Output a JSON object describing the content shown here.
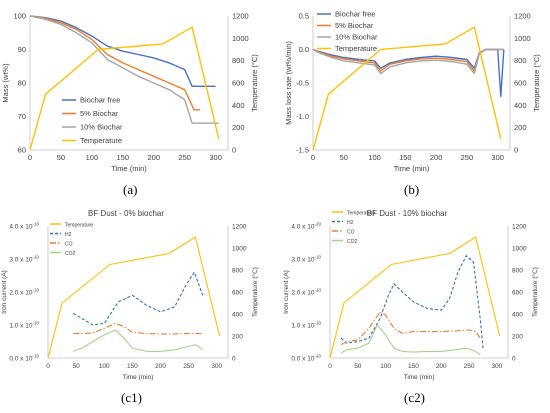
{
  "panel_labels": [
    "(a)",
    "(b)",
    "(c1)",
    "(c2)"
  ],
  "chart_data": [
    {
      "type": "line",
      "panel": "(a)",
      "xlabel": "Time (min)",
      "ylabel": "Mass (wt%)",
      "y2label": "Temperature (°C)",
      "xlim": [
        0,
        320
      ],
      "ylim": [
        60,
        100
      ],
      "y2lim": [
        0,
        1200
      ],
      "xticks": [
        0,
        50,
        100,
        150,
        200,
        250,
        300
      ],
      "yticks": [
        60,
        70,
        80,
        90,
        100
      ],
      "y2ticks": [
        0,
        200,
        400,
        600,
        800,
        1000,
        1200
      ],
      "legend_position": "lower-left",
      "series": [
        {
          "name": "Biochar free",
          "axis": "y",
          "color": "#4472c4",
          "x": [
            0,
            25,
            50,
            75,
            100,
            125,
            150,
            175,
            200,
            225,
            250,
            262,
            275,
            300
          ],
          "y": [
            100,
            99.5,
            98.5,
            96.5,
            94,
            91,
            89.5,
            88.5,
            87.5,
            86,
            84,
            79,
            79,
            79
          ]
        },
        {
          "name": "5% Biochar",
          "axis": "y",
          "color": "#ed7d31",
          "x": [
            0,
            25,
            50,
            75,
            100,
            125,
            150,
            175,
            200,
            225,
            250,
            265,
            275
          ],
          "y": [
            100,
            99.3,
            98,
            96,
            93,
            88.5,
            86,
            84,
            82,
            80,
            78,
            72,
            72
          ]
        },
        {
          "name": "10% Biochar",
          "axis": "y",
          "color": "#a5a5a5",
          "x": [
            0,
            25,
            50,
            75,
            100,
            125,
            150,
            175,
            200,
            225,
            250,
            262,
            275,
            305
          ],
          "y": [
            100,
            99,
            97.5,
            95,
            92,
            87,
            84.5,
            82,
            80,
            78,
            75,
            68,
            68,
            68
          ]
        },
        {
          "name": "Temperature",
          "axis": "y2",
          "color": "#ffc000",
          "x": [
            0,
            25,
            110,
            215,
            262,
            305
          ],
          "y": [
            0,
            500,
            900,
            950,
            1100,
            100
          ]
        }
      ]
    },
    {
      "type": "line",
      "panel": "(b)",
      "xlabel": "Time (min)",
      "ylabel": "Mass loss rate (wt%/min)",
      "y2label": "Temperature (°C)",
      "xlim": [
        0,
        320
      ],
      "ylim": [
        -1.5,
        0.5
      ],
      "y2lim": [
        0,
        1200
      ],
      "xticks": [
        0,
        50,
        100,
        150,
        200,
        250,
        300
      ],
      "yticks": [
        -1.5,
        -1,
        -0.5,
        0,
        0.5
      ],
      "ytick_labels": [
        "-1.5",
        "-1.0",
        "-0.5",
        "0.0",
        "0.5"
      ],
      "y2ticks": [
        0,
        200,
        400,
        600,
        800,
        1000,
        1200
      ],
      "legend_position": "top-left",
      "series": [
        {
          "name": "Biochar free",
          "axis": "y",
          "color": "#4472c4",
          "x": [
            0,
            10,
            30,
            50,
            75,
            100,
            110,
            125,
            150,
            175,
            200,
            225,
            250,
            262,
            270,
            280,
            300,
            305,
            310
          ],
          "y": [
            0,
            -0.03,
            -0.08,
            -0.12,
            -0.15,
            -0.17,
            -0.28,
            -0.2,
            -0.15,
            -0.12,
            -0.1,
            -0.12,
            -0.15,
            -0.28,
            -0.05,
            0,
            0,
            -0.7,
            0
          ]
        },
        {
          "name": "5% Biochar",
          "axis": "y",
          "color": "#ed7d31",
          "x": [
            0,
            10,
            30,
            50,
            75,
            100,
            110,
            125,
            150,
            175,
            200,
            225,
            250,
            262,
            270,
            280,
            300,
            310
          ],
          "y": [
            0,
            -0.04,
            -0.1,
            -0.14,
            -0.17,
            -0.2,
            -0.32,
            -0.22,
            -0.17,
            -0.14,
            -0.13,
            -0.15,
            -0.18,
            -0.32,
            -0.06,
            0,
            0,
            0
          ]
        },
        {
          "name": "10% Biochar",
          "axis": "y",
          "color": "#a5a5a5",
          "x": [
            0,
            10,
            30,
            50,
            75,
            100,
            110,
            125,
            150,
            175,
            200,
            225,
            250,
            262,
            270,
            280,
            300,
            310
          ],
          "y": [
            0,
            -0.05,
            -0.12,
            -0.17,
            -0.2,
            -0.23,
            -0.36,
            -0.26,
            -0.2,
            -0.17,
            -0.16,
            -0.18,
            -0.22,
            -0.36,
            -0.07,
            0,
            0,
            0
          ]
        },
        {
          "name": "Temperature",
          "axis": "y2",
          "color": "#ffc000",
          "x": [
            0,
            25,
            110,
            215,
            262,
            305
          ],
          "y": [
            0,
            500,
            900,
            950,
            1100,
            100
          ]
        }
      ]
    },
    {
      "type": "line",
      "panel": "(c1)",
      "title": "BF Dust - 0% biochar",
      "xlabel": "Time (min)",
      "ylabel": "Iron current (A)",
      "y2label": "Temperature (°C)",
      "xlim": [
        0,
        320
      ],
      "ylim": [
        0,
        4e-10
      ],
      "y2lim": [
        0,
        1200
      ],
      "xticks": [
        0,
        50,
        100,
        150,
        200,
        250,
        300
      ],
      "yticks": [
        0,
        1e-10,
        2e-10,
        3e-10,
        4e-10
      ],
      "ytick_mantissas": [
        "0.0",
        "1.0",
        "2.0",
        "3.0",
        "4.0"
      ],
      "ytick_suffix": " x 10",
      "ytick_exponent": "-10",
      "y2ticks": [
        0,
        200,
        400,
        600,
        800,
        1000,
        1200
      ],
      "legend_position": "top-left",
      "series": [
        {
          "name": "Temperature",
          "axis": "y2",
          "color": "#ffc000",
          "dash": "solid",
          "x": [
            0,
            25,
            110,
            215,
            262,
            305
          ],
          "y": [
            0,
            500,
            850,
            950,
            1100,
            200
          ]
        },
        {
          "name": "H2",
          "axis": "y",
          "color": "#2e75b6",
          "dash": "dash",
          "x": [
            45,
            60,
            80,
            100,
            125,
            150,
            175,
            200,
            225,
            245,
            260,
            275
          ],
          "y": [
            1.35e-10,
            1.2e-10,
            1e-10,
            1.05e-10,
            1.7e-10,
            1.9e-10,
            1.6e-10,
            1.4e-10,
            1.55e-10,
            2.2e-10,
            2.6e-10,
            1.9e-10
          ]
        },
        {
          "name": "CO",
          "axis": "y",
          "color": "#ed7d31",
          "dash": "dashdot",
          "x": [
            45,
            60,
            80,
            100,
            120,
            135,
            150,
            175,
            200,
            225,
            250,
            275
          ],
          "y": [
            7.5e-11,
            7.4e-11,
            7.6e-11,
            9e-11,
            1.05e-10,
            9.5e-11,
            7.8e-11,
            7.4e-11,
            7.3e-11,
            7.3e-11,
            7.4e-11,
            7.4e-11
          ]
        },
        {
          "name": "CO2",
          "axis": "y",
          "color": "#a9d18e",
          "dash": "solid",
          "x": [
            45,
            60,
            80,
            100,
            120,
            135,
            150,
            175,
            200,
            225,
            250,
            262,
            275
          ],
          "y": [
            2e-11,
            3e-11,
            5e-11,
            7e-11,
            8.5e-11,
            6e-11,
            3e-11,
            2e-11,
            2e-11,
            2.5e-11,
            3.5e-11,
            4e-11,
            2.5e-11
          ]
        }
      ]
    },
    {
      "type": "line",
      "panel": "(c2)",
      "title": "BF Dust - 10% biochar",
      "xlabel": "Time (min)",
      "ylabel": "Iron current (A)",
      "y2label": "Temperature (°C)",
      "xlim": [
        0,
        320
      ],
      "ylim": [
        0,
        4e-10
      ],
      "y2lim": [
        0,
        1200
      ],
      "xticks": [
        0,
        50,
        100,
        150,
        200,
        250,
        300
      ],
      "yticks": [
        0,
        1e-10,
        2e-10,
        3e-10,
        4e-10
      ],
      "ytick_mantissas": [
        "0.0",
        "1.0",
        "2.0",
        "3.0",
        "4.0"
      ],
      "ytick_suffix": " x 10",
      "ytick_exponent": "-10",
      "y2ticks": [
        0,
        200,
        400,
        600,
        800,
        1000,
        1200
      ],
      "legend_position": "top-left",
      "series": [
        {
          "name": "Temperature",
          "axis": "y2",
          "color": "#ffc000",
          "dash": "solid",
          "x": [
            0,
            25,
            110,
            215,
            262,
            305
          ],
          "y": [
            0,
            500,
            850,
            950,
            1100,
            200
          ]
        },
        {
          "name": "H2",
          "axis": "y",
          "color": "#2e75b6",
          "dash": "dash",
          "x": [
            20,
            30,
            50,
            70,
            90,
            105,
            115,
            130,
            150,
            175,
            200,
            215,
            230,
            245,
            258,
            270,
            275
          ],
          "y": [
            6e-11,
            4.5e-11,
            5e-11,
            6e-11,
            1.2e-10,
            1.9e-10,
            2.25e-10,
            2e-10,
            1.7e-10,
            1.5e-10,
            1.45e-10,
            1.8e-10,
            2.6e-10,
            3.1e-10,
            2.9e-10,
            1.2e-10,
            3e-11
          ]
        },
        {
          "name": "CO",
          "axis": "y",
          "color": "#ed7d31",
          "dash": "dashdot",
          "x": [
            20,
            30,
            50,
            70,
            90,
            100,
            115,
            130,
            150,
            175,
            200,
            225,
            250,
            262,
            270
          ],
          "y": [
            4e-11,
            5e-11,
            5.5e-11,
            9e-11,
            1.4e-10,
            1.3e-10,
            9e-11,
            7.5e-11,
            8e-11,
            8e-11,
            8e-11,
            8.2e-11,
            8.5e-11,
            8e-11,
            6e-11
          ]
        },
        {
          "name": "CO2",
          "axis": "y",
          "color": "#a9d18e",
          "dash": "solid",
          "x": [
            20,
            30,
            50,
            70,
            85,
            100,
            115,
            130,
            150,
            175,
            200,
            225,
            245,
            262,
            270
          ],
          "y": [
            1.5e-11,
            2.5e-11,
            3e-11,
            4.5e-11,
            1e-10,
            7e-11,
            3e-11,
            2e-11,
            1.8e-11,
            2e-11,
            2e-11,
            2.5e-11,
            3e-11,
            2e-11,
            1e-11
          ]
        }
      ]
    }
  ]
}
